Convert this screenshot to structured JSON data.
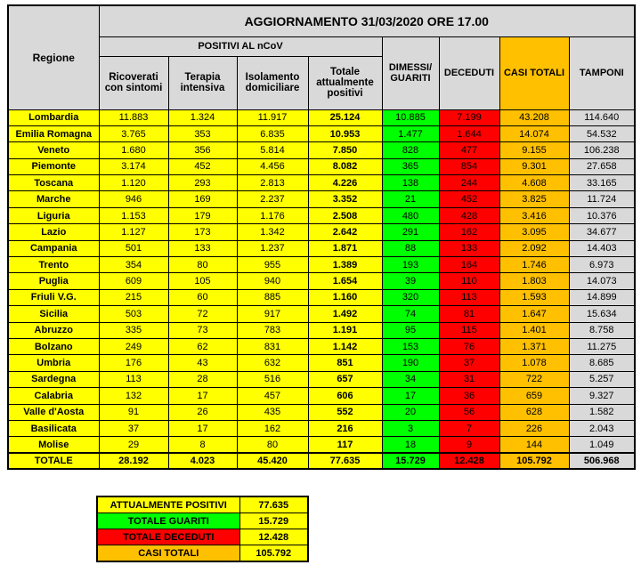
{
  "header": {
    "title": "AGGIORNAMENTO 31/03/2020 ORE 17.00",
    "group": "POSITIVI AL nCoV",
    "columns": [
      "Regione",
      "Ricoverati con sintomi",
      "Terapia intensiva",
      "Isolamento domiciliare",
      "Totale attualmente positivi",
      "DIMESSI/ GUARITI",
      "DECEDUTI",
      "CASI TOTALI",
      "TAMPONI"
    ]
  },
  "table": {
    "rows": [
      [
        "Lombardia",
        "11.883",
        "1.324",
        "11.917",
        "25.124",
        "10.885",
        "7.199",
        "43.208",
        "114.640"
      ],
      [
        "Emilia Romagna",
        "3.765",
        "353",
        "6.835",
        "10.953",
        "1.477",
        "1.644",
        "14.074",
        "54.532"
      ],
      [
        "Veneto",
        "1.680",
        "356",
        "5.814",
        "7.850",
        "828",
        "477",
        "9.155",
        "106.238"
      ],
      [
        "Piemonte",
        "3.174",
        "452",
        "4.456",
        "8.082",
        "365",
        "854",
        "9.301",
        "27.658"
      ],
      [
        "Toscana",
        "1.120",
        "293",
        "2.813",
        "4.226",
        "138",
        "244",
        "4.608",
        "33.165"
      ],
      [
        "Marche",
        "946",
        "169",
        "2.237",
        "3.352",
        "21",
        "452",
        "3.825",
        "11.724"
      ],
      [
        "Liguria",
        "1.153",
        "179",
        "1.176",
        "2.508",
        "480",
        "428",
        "3.416",
        "10.376"
      ],
      [
        "Lazio",
        "1.127",
        "173",
        "1.342",
        "2.642",
        "291",
        "162",
        "3.095",
        "34.677"
      ],
      [
        "Campania",
        "501",
        "133",
        "1.237",
        "1.871",
        "88",
        "133",
        "2.092",
        "14.403"
      ],
      [
        "Trento",
        "354",
        "80",
        "955",
        "1.389",
        "193",
        "164",
        "1.746",
        "6.973"
      ],
      [
        "Puglia",
        "609",
        "105",
        "940",
        "1.654",
        "39",
        "110",
        "1.803",
        "14.073"
      ],
      [
        "Friuli V.G.",
        "215",
        "60",
        "885",
        "1.160",
        "320",
        "113",
        "1.593",
        "14.899"
      ],
      [
        "Sicilia",
        "503",
        "72",
        "917",
        "1.492",
        "74",
        "81",
        "1.647",
        "15.634"
      ],
      [
        "Abruzzo",
        "335",
        "73",
        "783",
        "1.191",
        "95",
        "115",
        "1.401",
        "8.758"
      ],
      [
        "Bolzano",
        "249",
        "62",
        "831",
        "1.142",
        "153",
        "76",
        "1.371",
        "11.275"
      ],
      [
        "Umbria",
        "176",
        "43",
        "632",
        "851",
        "190",
        "37",
        "1.078",
        "8.685"
      ],
      [
        "Sardegna",
        "113",
        "28",
        "516",
        "657",
        "34",
        "31",
        "722",
        "5.257"
      ],
      [
        "Calabria",
        "132",
        "17",
        "457",
        "606",
        "17",
        "36",
        "659",
        "9.327"
      ],
      [
        "Valle d'Aosta",
        "91",
        "26",
        "435",
        "552",
        "20",
        "56",
        "628",
        "1.582"
      ],
      [
        "Basilicata",
        "37",
        "17",
        "162",
        "216",
        "3",
        "7",
        "226",
        "2.043"
      ],
      [
        "Molise",
        "29",
        "8",
        "80",
        "117",
        "18",
        "9",
        "144",
        "1.049"
      ]
    ],
    "totals": [
      "TOTALE",
      "28.192",
      "4.023",
      "45.420",
      "77.635",
      "15.729",
      "12.428",
      "105.792",
      "506.968"
    ]
  },
  "summary": {
    "rows": [
      [
        "ATTUALMENTE POSITIVI",
        "77.635"
      ],
      [
        "TOTALE GUARITI",
        "15.729"
      ],
      [
        "TOTALE DECEDUTI",
        "12.428"
      ],
      [
        "CASI TOTALI",
        "105.792"
      ]
    ]
  }
}
